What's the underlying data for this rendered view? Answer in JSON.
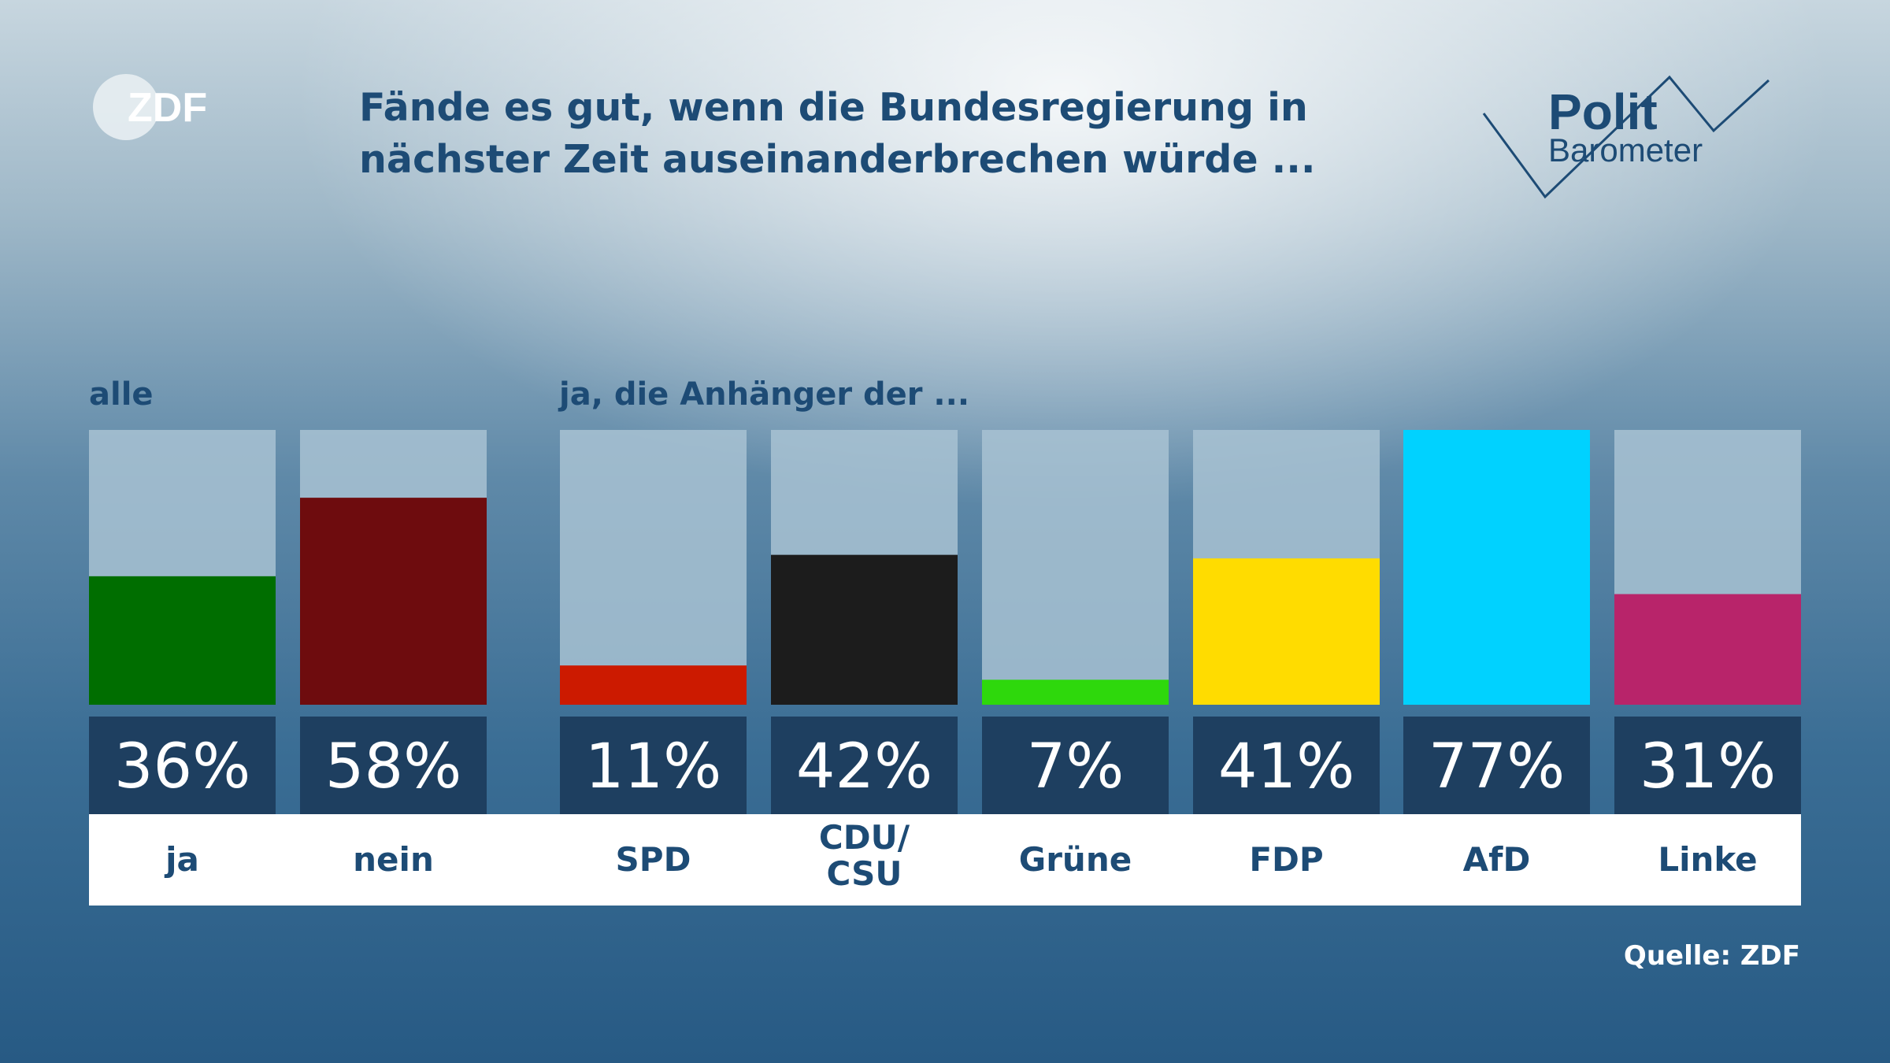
{
  "branding": {
    "zdf_logo": "ZDF",
    "polit_logo": {
      "line1": "Polit",
      "line2": "Barometer"
    }
  },
  "title": {
    "line1": "Fände es gut, wenn die Bundesregierung in",
    "line2": "nächster Zeit auseinanderbrechen würde ..."
  },
  "groups": {
    "all_label": "alle",
    "supporters_label": "ja, die Anhänger der ..."
  },
  "source": "Quelle: ZDF",
  "colors": {
    "title": "#1d4b75",
    "bar_track": "#a8c2d2",
    "value_box": "#1e3f60",
    "category_text": "#1d4b75"
  },
  "chart_data": {
    "type": "bar",
    "categories": [
      "ja",
      "nein",
      "SPD",
      "CDU/\nCSU",
      "Grüne",
      "FDP",
      "AfD",
      "Linke"
    ],
    "values": [
      36,
      58,
      11,
      42,
      7,
      41,
      77,
      31
    ],
    "value_labels": [
      "36%",
      "58%",
      "11%",
      "42%",
      "7%",
      "41%",
      "77%",
      "31%"
    ],
    "colors": [
      "#006e00",
      "#6e0c0e",
      "#cc1a00",
      "#1c1c1c",
      "#2ed80c",
      "#ffdc00",
      "#00d2ff",
      "#b8246a"
    ],
    "groups": [
      "alle",
      "alle",
      "ja, die Anhänger der ...",
      "ja, die Anhänger der ...",
      "ja, die Anhänger der ...",
      "ja, die Anhänger der ...",
      "ja, die Anhänger der ...",
      "ja, die Anhänger der ..."
    ],
    "unit": "%",
    "ylim": [
      0,
      77
    ],
    "grid": false
  }
}
